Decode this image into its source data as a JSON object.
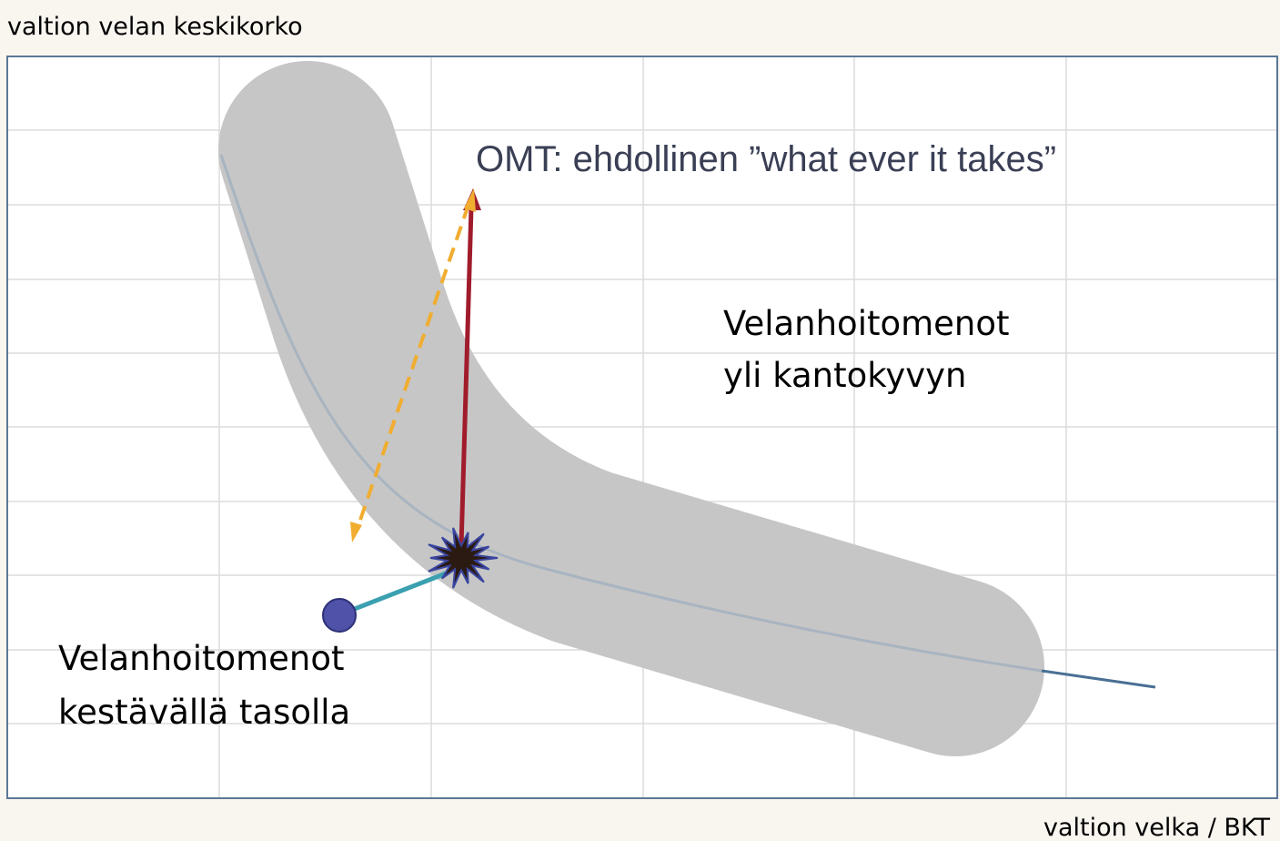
{
  "y_axis_label": "valtion velan keskikorko",
  "x_axis_label": "valtion velka / BKT",
  "annotations": {
    "omt": "OMT: ehdollinen ”what ever it takes”",
    "unsustainable": [
      "Velanhoitomenot",
      "yli kantokyvyn"
    ],
    "sustainable": [
      "Velanhoitomenot",
      "kestävällä tasolla"
    ]
  }
}
